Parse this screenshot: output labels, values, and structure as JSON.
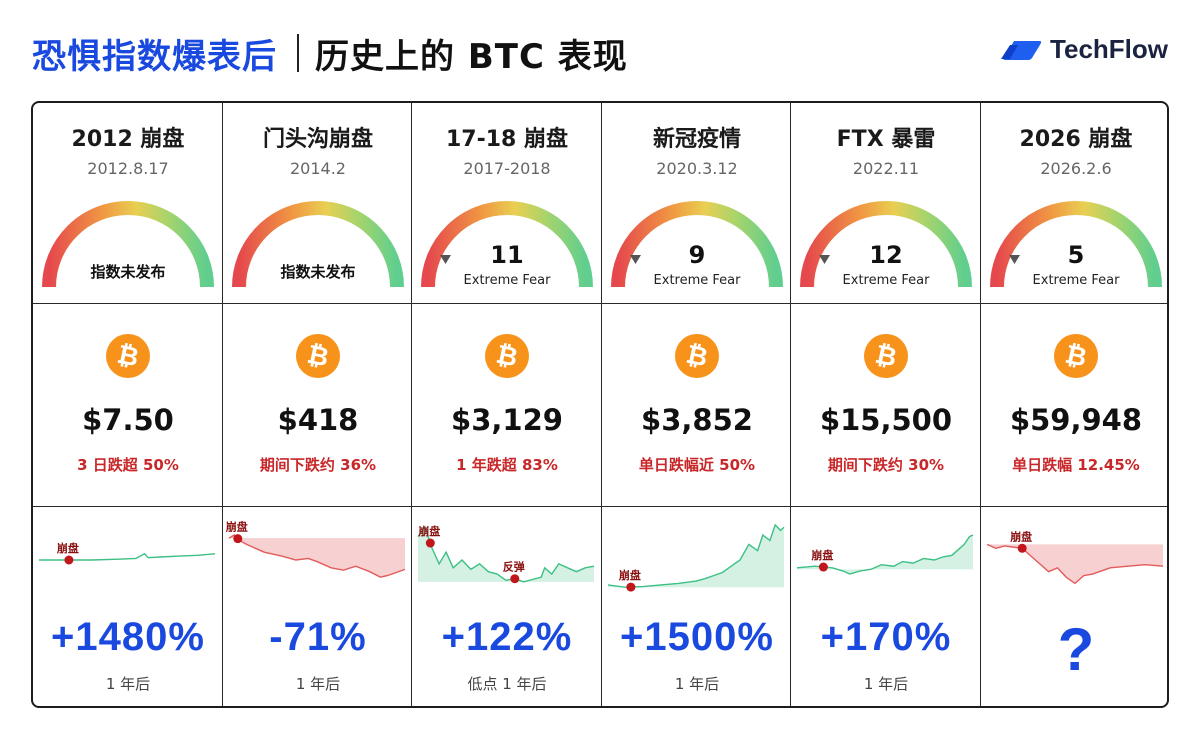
{
  "header": {
    "title_blue": "恐惧指数爆表后",
    "title_black": "历史上的 BTC 表现",
    "brand": "TechFlow"
  },
  "colors": {
    "accent_blue": "#1a49e0",
    "drop_red": "#c8282a",
    "btc_orange": "#f7931a",
    "up_green": "#3cc083",
    "down_red": "#e35a5a"
  },
  "icons": {
    "brand": "techflow-logo-icon",
    "coin": "bitcoin-icon"
  },
  "cards": [
    {
      "event": "2012 崩盘",
      "date": "2012.8.17",
      "fear": {
        "published": false,
        "note": "指数未发布"
      },
      "price": "$7.50",
      "drop": "3 日跌超 50%",
      "result": "+1480%",
      "period": "1 年后",
      "mark_label": "崩盘",
      "mark_label2": ""
    },
    {
      "event": "门头沟崩盘",
      "date": "2014.2",
      "fear": {
        "published": false,
        "note": "指数未发布"
      },
      "price": "$418",
      "drop": "期间下跌约 36%",
      "result": "-71%",
      "period": "1 年后",
      "mark_label": "崩盘",
      "mark_label2": ""
    },
    {
      "event": "17-18 崩盘",
      "date": "2017-2018",
      "fear": {
        "published": true,
        "value": "11",
        "label": "Extreme Fear"
      },
      "price": "$3,129",
      "drop": "1 年跌超 83%",
      "result": "+122%",
      "period": "低点 1 年后",
      "mark_label": "崩盘",
      "mark_label2": "反弹"
    },
    {
      "event": "新冠疫情",
      "date": "2020.3.12",
      "fear": {
        "published": true,
        "value": "9",
        "label": "Extreme Fear"
      },
      "price": "$3,852",
      "drop": "单日跌幅近 50%",
      "result": "+1500%",
      "period": "1 年后",
      "mark_label": "崩盘",
      "mark_label2": ""
    },
    {
      "event": "FTX 暴雷",
      "date": "2022.11",
      "fear": {
        "published": true,
        "value": "12",
        "label": "Extreme Fear"
      },
      "price": "$15,500",
      "drop": "期间下跌约 30%",
      "result": "+170%",
      "period": "1 年后",
      "mark_label": "崩盘",
      "mark_label2": ""
    },
    {
      "event": "2026 崩盘",
      "date": "2026.2.6",
      "fear": {
        "published": true,
        "value": "5",
        "label": "Extreme Fear"
      },
      "price": "$59,948",
      "drop": "单日跌幅 12.45%",
      "result": "?",
      "period": "",
      "mark_label": "崩盘",
      "mark_label2": ""
    }
  ]
}
